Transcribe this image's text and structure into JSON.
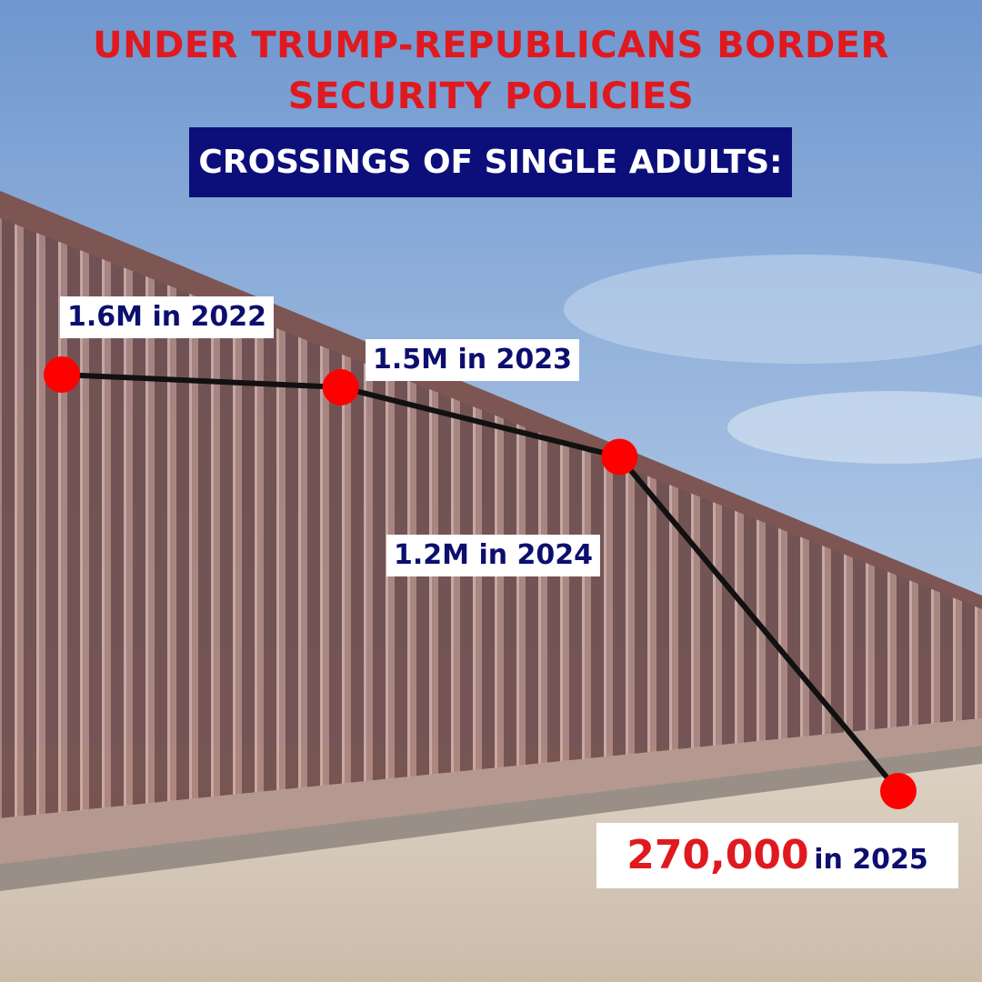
{
  "title": "UNDER TRUMP-REPUBLICANS BORDER SECURITY POLICIES",
  "subtitle": "CROSSINGS OF SINGLE ADULTS:",
  "labels": {
    "y2022": "1.6M in 2022",
    "y2023": "1.5M in 2023",
    "y2024": "1.2M in 2024",
    "y2025_value": "270,000",
    "y2025_year": "in 2025"
  },
  "colors": {
    "title": "#e0191f",
    "banner": "#0c0f7a",
    "label_text": "#0c0f6e",
    "marker": "#ff0000",
    "line": "#111111"
  },
  "chart_data": {
    "type": "line",
    "title": "CROSSINGS OF SINGLE ADULTS:",
    "x": [
      2022,
      2023,
      2024,
      2025
    ],
    "series": [
      {
        "values": [
          1600000,
          1500000,
          1200000,
          270000
        ]
      }
    ],
    "grid": false,
    "legend": "none"
  }
}
